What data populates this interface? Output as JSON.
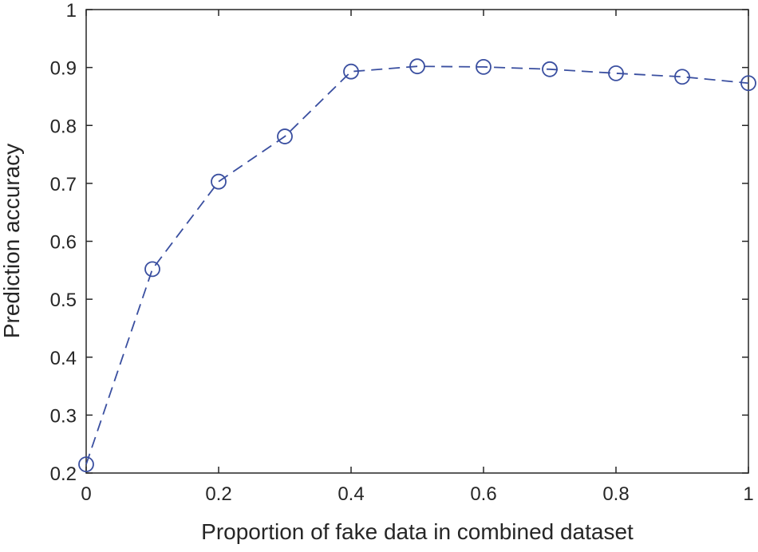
{
  "chart_data": {
    "type": "line",
    "title": "",
    "xlabel": "Proportion of fake data in combined dataset",
    "ylabel": "Prediction accuracy",
    "xlim": [
      0,
      1
    ],
    "ylim": [
      0.2,
      1
    ],
    "xticks": [
      0,
      0.2,
      0.4,
      0.6,
      0.8,
      1
    ],
    "xtick_labels": [
      "0",
      "0.2",
      "0.4",
      "0.6",
      "0.8",
      "1"
    ],
    "yticks": [
      0.2,
      0.3,
      0.4,
      0.5,
      0.6,
      0.7,
      0.8,
      0.9,
      1
    ],
    "ytick_labels": [
      "0.2",
      "0.3",
      "0.4",
      "0.5",
      "0.6",
      "0.7",
      "0.8",
      "0.9",
      "1"
    ],
    "grid": false,
    "legend": "none",
    "series": [
      {
        "x": [
          0,
          0.1,
          0.2,
          0.3,
          0.4,
          0.5,
          0.6,
          0.7,
          0.8,
          0.9,
          1.0
        ],
        "y": [
          0.215,
          0.552,
          0.703,
          0.781,
          0.893,
          0.902,
          0.901,
          0.897,
          0.89,
          0.884,
          0.873
        ],
        "color": "#3a4fa0",
        "line_style": "dashed",
        "marker": "open-circle"
      }
    ]
  }
}
